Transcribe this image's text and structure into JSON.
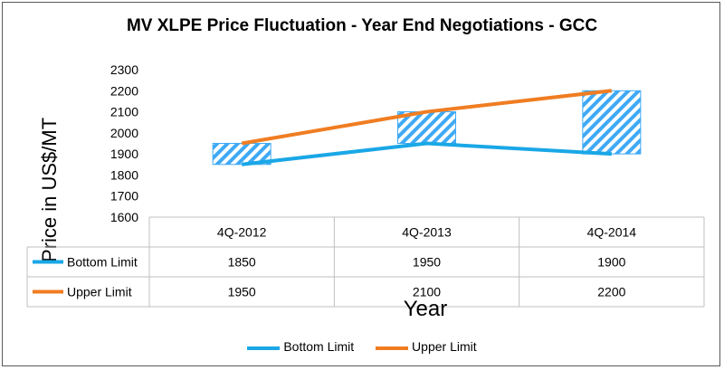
{
  "chart_data": {
    "type": "line",
    "title": "MV XLPE Price Fluctuation - Year End Negotiations - GCC",
    "xlabel": "Year",
    "ylabel": "Price in US$/MT",
    "categories": [
      "4Q-2012",
      "4Q-2013",
      "4Q-2014"
    ],
    "ylim": [
      1600,
      2300
    ],
    "yticks": [
      "1600",
      "1700",
      "1800",
      "1900",
      "2000",
      "2100",
      "2200",
      "2300"
    ],
    "series": [
      {
        "name": "Bottom Limit",
        "values": [
          1850,
          1950,
          1900
        ],
        "color": "#1aa7e6"
      },
      {
        "name": "Upper Limit",
        "values": [
          1950,
          2100,
          2200
        ],
        "color": "#f07d22"
      }
    ],
    "data_table_values": [
      [
        "1850",
        "1950",
        "1900"
      ],
      [
        "1950",
        "2100",
        "2200"
      ]
    ],
    "legend_position": "bottom",
    "range_box_fill": "diagonal hatch",
    "range_box_color": "#3fa9f5"
  }
}
